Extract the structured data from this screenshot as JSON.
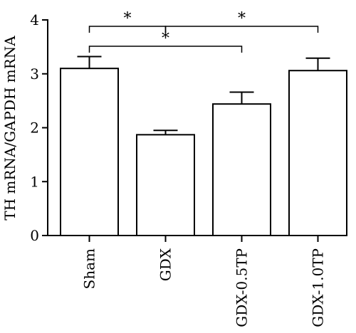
{
  "chart_data": {
    "type": "bar",
    "title": "",
    "xlabel": "",
    "ylabel": "TH mRNA/GAPDH mRNA",
    "ylim": [
      0,
      4
    ],
    "yticks": [
      0,
      1,
      2,
      3,
      4
    ],
    "grid": false,
    "categories": [
      "Sham",
      "GDX",
      "GDX-0.5TP",
      "GDX-1.0TP"
    ],
    "values": [
      3.1,
      1.87,
      2.44,
      3.06
    ],
    "errors": [
      0.22,
      0.08,
      0.22,
      0.23
    ],
    "bar_fill": "#ffffff",
    "bar_edge": "#000000",
    "significance": [
      {
        "from": 0,
        "to": 1,
        "label": "*"
      },
      {
        "from": 1,
        "to": 3,
        "label": "*"
      },
      {
        "from": 0,
        "to": 2,
        "label": "*"
      }
    ]
  }
}
